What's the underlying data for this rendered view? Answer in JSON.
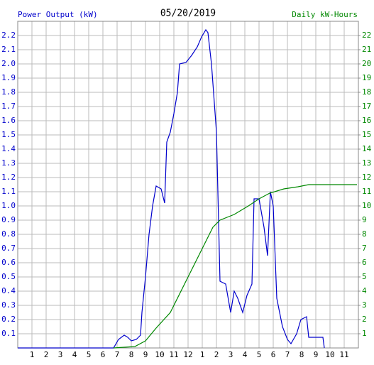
{
  "chart_data": {
    "type": "line",
    "title": "05/20/2019",
    "ylabel": "Power Output (kW)",
    "y2label": "Daily kW-Hours",
    "xlim": [
      0,
      24
    ],
    "xticks": [
      1,
      2,
      3,
      4,
      5,
      6,
      7,
      8,
      9,
      10,
      11,
      12,
      {
        "value": 13,
        "label": "1"
      },
      {
        "value": 14,
        "label": "2"
      },
      {
        "value": 15,
        "label": "3"
      },
      {
        "value": 16,
        "label": "4"
      },
      {
        "value": 17,
        "label": "5"
      },
      {
        "value": 18,
        "label": "6"
      },
      {
        "value": 19,
        "label": "7"
      },
      {
        "value": 20,
        "label": "8"
      },
      {
        "value": 21,
        "label": "9"
      },
      {
        "value": 22,
        "label": "10"
      },
      {
        "value": 23,
        "label": "11"
      }
    ],
    "ylim": [
      0,
      2.3
    ],
    "yticks": [
      0.1,
      0.2,
      0.3,
      0.4,
      0.5,
      0.6,
      0.7,
      0.8,
      0.9,
      {
        "value": 1,
        "label": "1.0"
      },
      1.1,
      1.2,
      1.3,
      1.4,
      1.5,
      1.6,
      1.7,
      1.8,
      1.9,
      {
        "value": 2,
        "label": "2.0"
      },
      2.1,
      2.2
    ],
    "y2lim": [
      0,
      23
    ],
    "y2ticks": [
      1,
      2,
      3,
      4,
      5,
      6,
      7,
      8,
      9,
      10,
      11,
      12,
      13,
      14,
      15,
      16,
      17,
      18,
      19,
      20,
      21,
      22
    ],
    "grid": true,
    "series": [
      {
        "color": "#0000cc",
        "axis": "y",
        "x": [
          0,
          6.75,
          7.1,
          7.5,
          7.75,
          8.0,
          8.35,
          8.65,
          8.75,
          9.0,
          9.25,
          9.5,
          9.75,
          10.1,
          10.35,
          10.5,
          10.75,
          11.0,
          11.25,
          11.4,
          11.85,
          12.25,
          12.65,
          12.95,
          13.25,
          13.4,
          13.65,
          14.0,
          14.25,
          14.65,
          15.0,
          15.25,
          15.5,
          15.85,
          16.15,
          16.5,
          16.65,
          17.0,
          17.35,
          17.6,
          17.8,
          18.0,
          18.25,
          18.65,
          19.0,
          19.25,
          19.65,
          19.95,
          20.35,
          20.5,
          21.5,
          21.6
        ],
        "values": [
          0,
          0,
          0.06,
          0.09,
          0.075,
          0.05,
          0.06,
          0.09,
          0.25,
          0.5,
          0.8,
          1.0,
          1.14,
          1.12,
          1.02,
          1.45,
          1.52,
          1.65,
          1.8,
          2.0,
          2.01,
          2.06,
          2.12,
          2.19,
          2.24,
          2.22,
          2.0,
          1.52,
          0.47,
          0.45,
          0.25,
          0.4,
          0.35,
          0.25,
          0.37,
          0.45,
          1.05,
          1.05,
          0.85,
          0.65,
          1.1,
          1.0,
          0.35,
          0.15,
          0.06,
          0.03,
          0.1,
          0.2,
          0.22,
          0.075,
          0.075,
          0
        ]
      },
      {
        "color": "#008800",
        "axis": "y2",
        "x": [
          6.75,
          8.25,
          9.0,
          9.75,
          10.75,
          11.75,
          12.75,
          13.75,
          14.25,
          15.25,
          16.25,
          17.0,
          17.75,
          18.75,
          19.75,
          20.5,
          23.9
        ],
        "values": [
          0,
          0.1,
          0.5,
          1.4,
          2.5,
          4.5,
          6.5,
          8.5,
          9.0,
          9.4,
          10.0,
          10.5,
          10.9,
          11.2,
          11.35,
          11.5,
          11.5
        ]
      }
    ]
  }
}
